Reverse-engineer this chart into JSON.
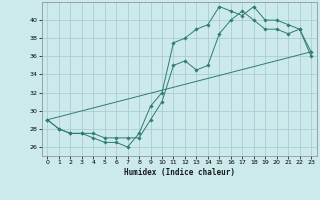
{
  "title": "",
  "xlabel": "Humidex (Indice chaleur)",
  "ylabel": "",
  "background_color": "#cce9ec",
  "grid_color": "#aacdd4",
  "line_color": "#2e7d6e",
  "xlim": [
    -0.5,
    23.5
  ],
  "ylim": [
    25.0,
    42.0
  ],
  "yticks": [
    26,
    28,
    30,
    32,
    34,
    36,
    38,
    40
  ],
  "xticks": [
    0,
    1,
    2,
    3,
    4,
    5,
    6,
    7,
    8,
    9,
    10,
    11,
    12,
    13,
    14,
    15,
    16,
    17,
    18,
    19,
    20,
    21,
    22,
    23
  ],
  "line1_x": [
    0,
    1,
    2,
    3,
    4,
    5,
    6,
    7,
    8,
    9,
    10,
    11,
    12,
    13,
    14,
    15,
    16,
    17,
    18,
    19,
    20,
    21,
    22,
    23
  ],
  "line1_y": [
    29,
    28,
    27.5,
    27.5,
    27,
    26.5,
    26.5,
    26,
    27.5,
    30.5,
    32,
    37.5,
    38,
    39,
    39.5,
    41.5,
    41,
    40.5,
    41.5,
    40,
    40,
    39.5,
    39,
    36.5
  ],
  "line2_x": [
    0,
    1,
    2,
    3,
    4,
    5,
    6,
    7,
    8,
    9,
    10,
    11,
    12,
    13,
    14,
    15,
    16,
    17,
    18,
    19,
    20,
    21,
    22,
    23
  ],
  "line2_y": [
    29,
    28,
    27.5,
    27.5,
    27.5,
    27,
    27,
    27,
    27,
    29,
    31,
    35,
    35.5,
    34.5,
    35,
    38.5,
    40,
    41,
    40,
    39,
    39,
    38.5,
    39,
    36
  ],
  "line3_x": [
    0,
    23
  ],
  "line3_y": [
    29,
    36.5
  ]
}
